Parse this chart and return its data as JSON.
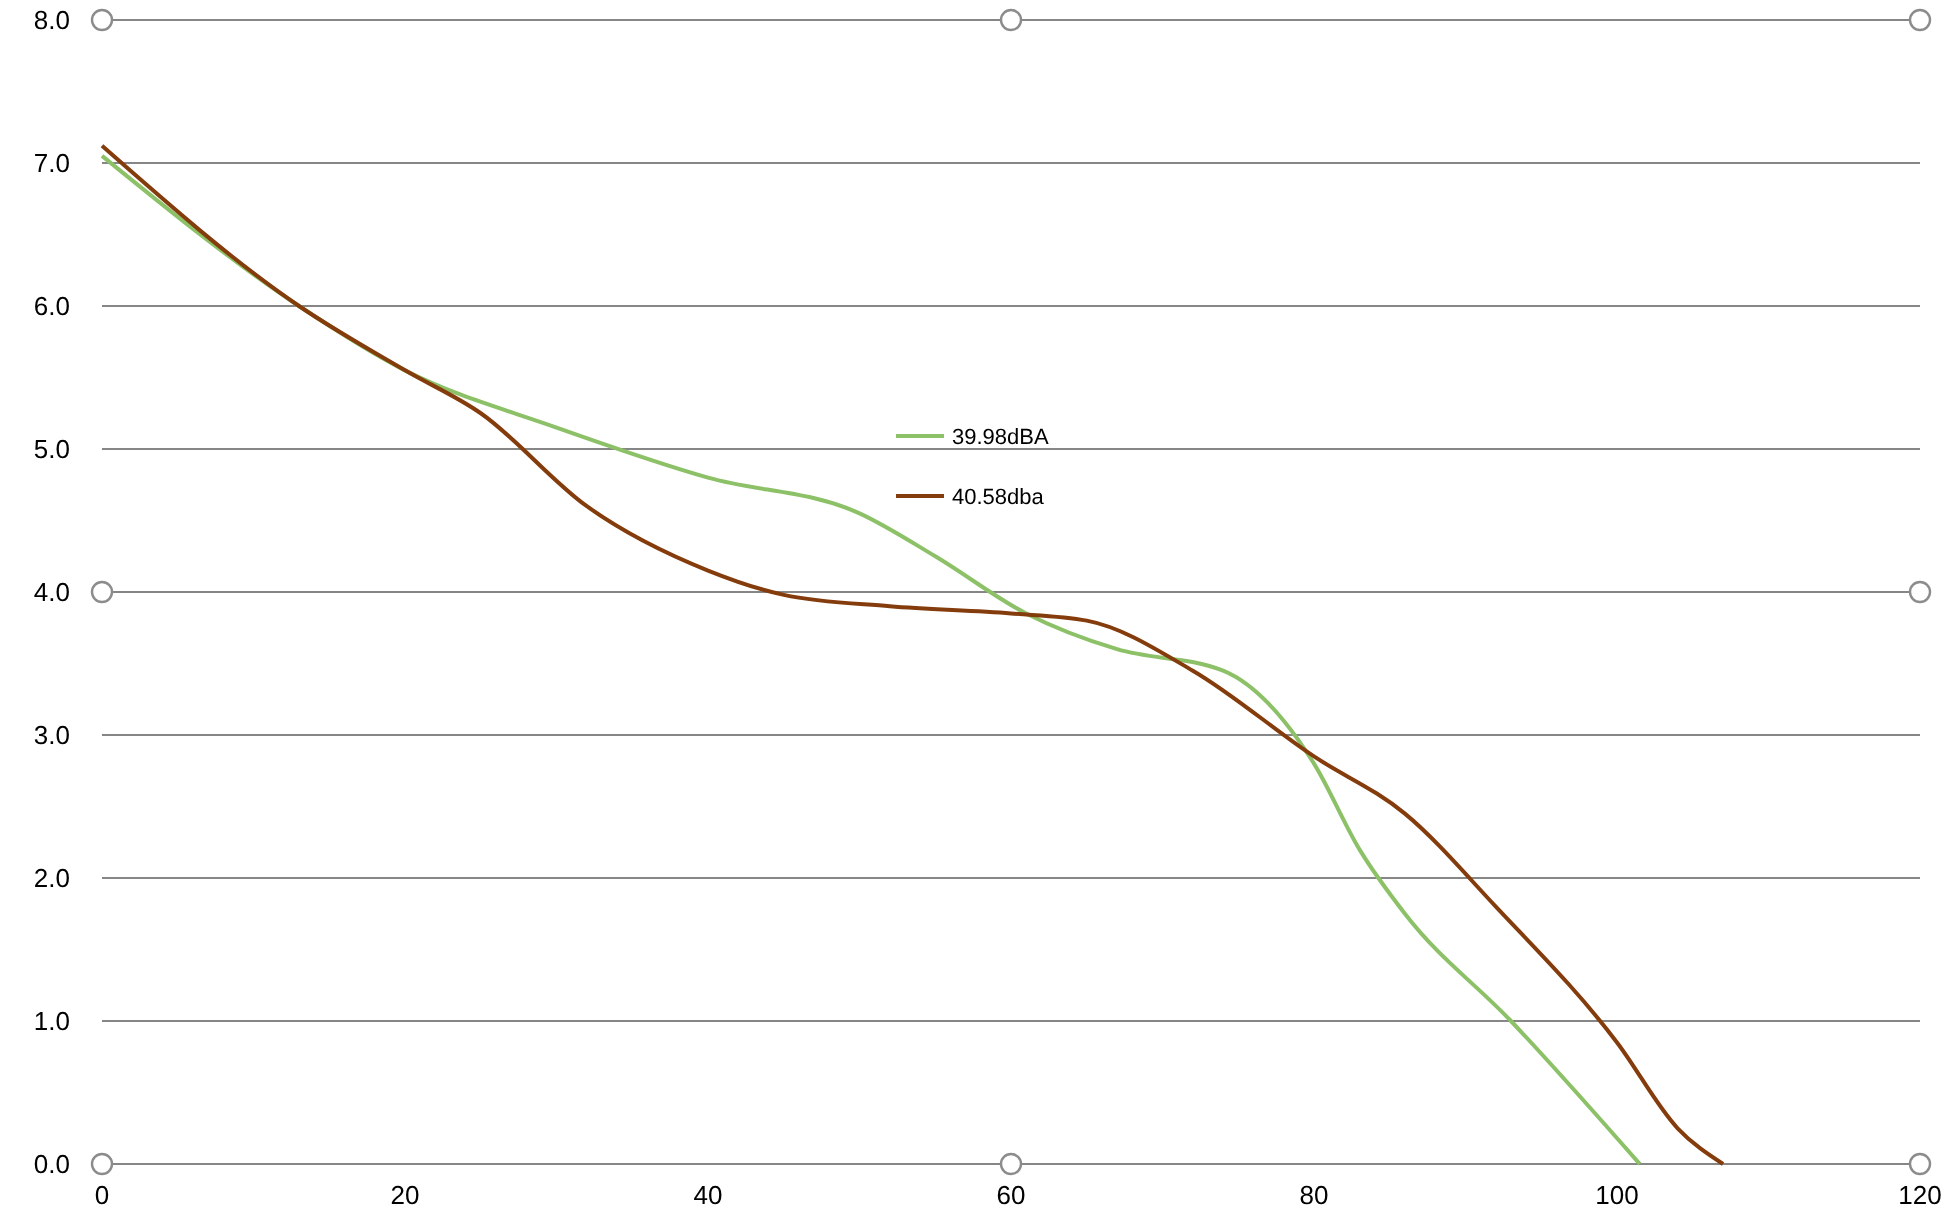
{
  "chart_data": {
    "type": "line",
    "xlim": [
      0,
      120
    ],
    "ylim": [
      0,
      8
    ],
    "xticks": [
      0,
      20,
      40,
      60,
      80,
      100,
      120
    ],
    "yticks": [
      {
        "value": 0,
        "label": "0.0"
      },
      {
        "value": 1,
        "label": "1.0"
      },
      {
        "value": 2,
        "label": "2.0"
      },
      {
        "value": 3,
        "label": "3.0"
      },
      {
        "value": 4,
        "label": "4.0"
      },
      {
        "value": 5,
        "label": "5.0"
      },
      {
        "value": 6,
        "label": "6.0"
      },
      {
        "value": 7,
        "label": "7.0"
      },
      {
        "value": 8,
        "label": "8.0"
      }
    ],
    "grid": "y",
    "legend": "top",
    "marker": "none",
    "line_style": "solid",
    "series": [
      {
        "name": "39.98dBA",
        "color": "#8cc168",
        "x": [
          0,
          13,
          20,
          30,
          40,
          50,
          55,
          61,
          67,
          74,
          78,
          80,
          83,
          86,
          93,
          101.5
        ],
        "values": [
          7.05,
          6.0,
          5.55,
          5.15,
          4.8,
          4.55,
          4.25,
          3.85,
          3.6,
          3.45,
          3.1,
          2.8,
          2.2,
          1.75,
          1.0,
          0
        ]
      },
      {
        "name": "40.58dba",
        "color": "#843c0c",
        "x": [
          0,
          13,
          20,
          25,
          32,
          40,
          45,
          52,
          60,
          65,
          72,
          80,
          86,
          92,
          100,
          104,
          107
        ],
        "values": [
          7.12,
          6.0,
          5.55,
          5.25,
          4.6,
          4.15,
          3.98,
          3.9,
          3.85,
          3.8,
          3.45,
          2.85,
          2.45,
          1.8,
          0.85,
          0.25,
          0
        ]
      }
    ]
  }
}
